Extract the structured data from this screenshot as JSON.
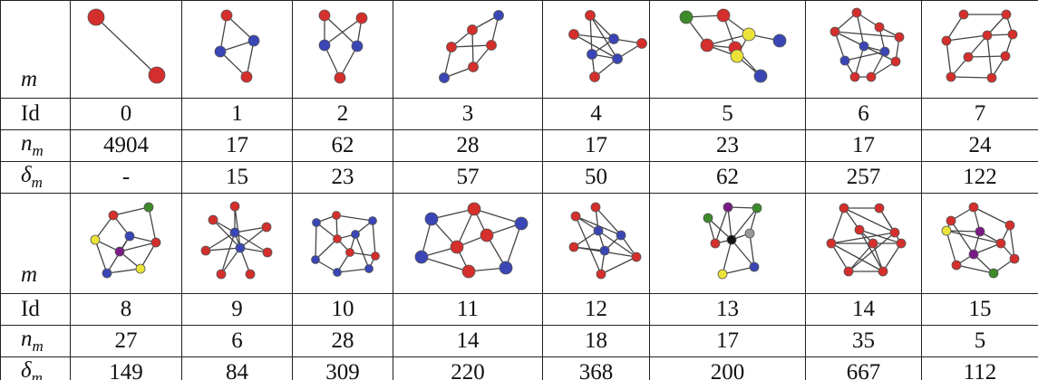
{
  "table": {
    "row_labels": {
      "graph": "m",
      "id": "Id",
      "count": {
        "main": "n",
        "sub": "m"
      },
      "delta": {
        "main": "δ",
        "sub": "m"
      }
    },
    "blocks": [
      {
        "ids": [
          0,
          1,
          2,
          3,
          4,
          5,
          6,
          7
        ],
        "counts": [
          4904,
          17,
          62,
          28,
          17,
          23,
          17,
          24
        ],
        "deltas": [
          "-",
          15,
          23,
          57,
          50,
          62,
          257,
          122
        ]
      },
      {
        "ids": [
          8,
          9,
          10,
          11,
          12,
          13,
          14,
          15
        ],
        "counts": [
          27,
          6,
          28,
          14,
          18,
          17,
          35,
          5
        ],
        "deltas": [
          149,
          84,
          309,
          220,
          368,
          200,
          667,
          112
        ]
      }
    ]
  }
}
